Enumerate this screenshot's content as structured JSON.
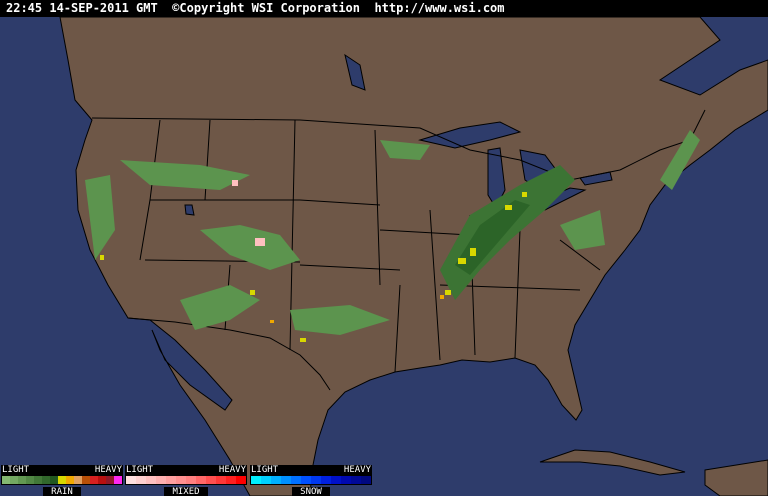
{
  "header": {
    "text": "22:45 14-SEP-2011 GMT  ©Copyright WSI Corporation  http://www.wsi.com"
  },
  "colors": {
    "ocean": "#2e3c6b",
    "land": "#6e5747",
    "border": "#000000"
  },
  "legend": [
    {
      "name": "RAIN",
      "light": "LIGHT",
      "heavy": "HEAVY",
      "colors": [
        "#84b872",
        "#73a862",
        "#629852",
        "#528845",
        "#427838",
        "#32682c",
        "#225820",
        "#d8d800",
        "#f0a800",
        "#e0a060",
        "#b85008",
        "#d82020",
        "#b81010",
        "#901828",
        "#ff28f0"
      ]
    },
    {
      "name": "MIXED",
      "light": "LIGHT",
      "heavy": "HEAVY",
      "colors": [
        "#ffe0e0",
        "#ffd0d0",
        "#ffc0c0",
        "#ffb0b0",
        "#ffa0a0",
        "#ff9090",
        "#ff8080",
        "#ff6868",
        "#ff5050",
        "#ff3838",
        "#ff2020",
        "#ff0000"
      ]
    },
    {
      "name": "SNOW",
      "light": "LIGHT",
      "heavy": "HEAVY",
      "colors": [
        "#00f0ff",
        "#00d0ff",
        "#00b0ff",
        "#0090ff",
        "#0070ff",
        "#0050ff",
        "#0038f0",
        "#0020e0",
        "#0010c8",
        "#0008b0",
        "#000898",
        "#000880"
      ]
    }
  ]
}
